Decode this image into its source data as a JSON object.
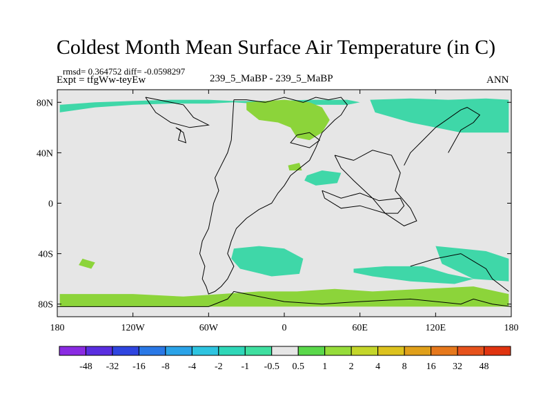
{
  "chart_data": {
    "type": "heatmap",
    "title": "Coldest Month Mean Surface Air Temperature (in C)",
    "subtitle_left_top": "rmsd= 0.364752 diff= -0.0598297",
    "subtitle_left": "Expt = tfgWw-teyEw",
    "subtitle_center": "239_5_MaBP - 239_5_MaBP",
    "subtitle_right": "ANN",
    "xlim": [
      -180,
      180
    ],
    "ylim": [
      -90,
      90
    ],
    "x_ticks": [
      {
        "value": -180,
        "label": "180"
      },
      {
        "value": -120,
        "label": "120W"
      },
      {
        "value": -60,
        "label": "60W"
      },
      {
        "value": 0,
        "label": "0"
      },
      {
        "value": 60,
        "label": "60E"
      },
      {
        "value": 120,
        "label": "120E"
      },
      {
        "value": 180,
        "label": "180"
      }
    ],
    "y_ticks": [
      {
        "value": 80,
        "label": "80N"
      },
      {
        "value": 40,
        "label": "40N"
      },
      {
        "value": 0,
        "label": "0"
      },
      {
        "value": -40,
        "label": "40S"
      },
      {
        "value": -80,
        "label": "80S"
      }
    ],
    "colorbar": {
      "labels": [
        "-48",
        "-32",
        "-16",
        "-8",
        "-4",
        "-2",
        "-1",
        "-0.5",
        "0.5",
        "1",
        "2",
        "4",
        "8",
        "16",
        "32",
        "48"
      ],
      "colors": [
        "#8a2be2",
        "#5a2ee0",
        "#2f45e0",
        "#2a78e6",
        "#2ba3e8",
        "#2ec4e0",
        "#2fd7b8",
        "#3fdfa0",
        "#e6e6e6",
        "#5ad84a",
        "#96dc3a",
        "#c4d62a",
        "#dcc21e",
        "#e0a01a",
        "#e6781c",
        "#e6521c",
        "#e03410"
      ]
    },
    "regions": [
      {
        "category": "-0.5 to -1",
        "lon": [
          -178,
          -150,
          -120,
          -90,
          -60,
          -40,
          -10,
          20,
          50,
          60,
          50,
          20,
          -10,
          -40,
          -60,
          -90,
          -120,
          -150,
          -178
        ],
        "lat": [
          78,
          80,
          81,
          82,
          82,
          81,
          81,
          82,
          82,
          80,
          78,
          78,
          78,
          80,
          79,
          79,
          78,
          76,
          72
        ]
      },
      {
        "category": "-0.5 to -1",
        "lon": [
          68,
          100,
          130,
          160,
          178,
          178,
          140,
          100,
          72
        ],
        "lat": [
          82,
          83,
          82,
          83,
          82,
          56,
          56,
          64,
          72
        ]
      },
      {
        "category": "0.5 to 1",
        "lon": [
          -30,
          0,
          20,
          30,
          36,
          30,
          20,
          10,
          5,
          -5,
          -20,
          -30
        ],
        "lat": [
          80,
          82,
          80,
          76,
          66,
          56,
          50,
          52,
          60,
          64,
          66,
          74
        ]
      },
      {
        "category": "0.5 to 1",
        "lon": [
          10,
          25,
          28,
          15
        ],
        "lat": [
          70,
          72,
          64,
          62
        ]
      },
      {
        "category": "-0.5 to -1",
        "lon": [
          18,
          30,
          45,
          42,
          25,
          16
        ],
        "lat": [
          22,
          26,
          24,
          16,
          14,
          18
        ]
      },
      {
        "category": "0.5 to 1",
        "lon": [
          3,
          12,
          14,
          4
        ],
        "lat": [
          30,
          32,
          26,
          26
        ]
      },
      {
        "category": "-0.5 to -1",
        "lon": [
          -40,
          -20,
          0,
          15,
          12,
          -10,
          -35,
          -42
        ],
        "lat": [
          -36,
          -34,
          -36,
          -44,
          -56,
          -58,
          -52,
          -44
        ]
      },
      {
        "category": "0.5 to 1",
        "lon": [
          -160,
          -150,
          -153,
          -163
        ],
        "lat": [
          -44,
          -47,
          -52,
          -49
        ]
      },
      {
        "category": "0.5 to 1",
        "lon": [
          -178,
          -120,
          -80,
          -50,
          -20,
          10,
          40,
          70,
          110,
          150,
          178,
          178,
          -178
        ],
        "lat": [
          -72,
          -72,
          -74,
          -72,
          -70,
          -70,
          -68,
          -70,
          -68,
          -66,
          -72,
          -82,
          -82
        ]
      },
      {
        "category": "-0.5 to -1",
        "lon": [
          55,
          80,
          110,
          130,
          150,
          135,
          100,
          70,
          55
        ],
        "lat": [
          -52,
          -50,
          -50,
          -56,
          -60,
          -64,
          -62,
          -58,
          -55
        ]
      },
      {
        "category": "-0.5 to -1",
        "lon": [
          120,
          140,
          160,
          178,
          178,
          150,
          125
        ],
        "lat": [
          -34,
          -36,
          -38,
          -44,
          -62,
          -60,
          -48
        ]
      }
    ],
    "coastlines": [
      {
        "lon": [
          -40,
          -30,
          -15,
          0,
          15,
          25,
          35,
          45,
          50,
          45,
          40,
          30,
          25,
          20,
          15,
          10,
          5,
          0,
          -5,
          -10,
          -20,
          -30,
          -38,
          -42,
          -45,
          -40,
          -45,
          -50,
          -55,
          -60,
          -62,
          -65,
          -63,
          -67,
          -65,
          -60,
          -58,
          -56,
          -52,
          -55,
          -50,
          -45,
          -42,
          -40
        ],
        "lat": [
          82,
          82,
          80,
          84,
          80,
          84,
          82,
          84,
          78,
          70,
          66,
          56,
          44,
          34,
          30,
          26,
          22,
          14,
          8,
          0,
          -5,
          -12,
          -20,
          -30,
          -40,
          -50,
          -60,
          -66,
          -70,
          -72,
          -66,
          -60,
          -50,
          -40,
          -30,
          -20,
          -10,
          0,
          10,
          20,
          30,
          40,
          50,
          82
        ]
      },
      {
        "lon": [
          -110,
          -100,
          -90,
          -80,
          -72,
          -60,
          -75,
          -90,
          -102,
          -110
        ],
        "lat": [
          84,
          82,
          80,
          78,
          68,
          62,
          60,
          64,
          72,
          84
        ]
      },
      {
        "lon": [
          -86,
          -82,
          -84,
          -78,
          -80,
          -86
        ],
        "lat": [
          60,
          58,
          50,
          48,
          56,
          60
        ]
      },
      {
        "lon": [
          10,
          20,
          28,
          20,
          5,
          10
        ],
        "lat": [
          54,
          56,
          50,
          44,
          48,
          54
        ]
      },
      {
        "lon": [
          40,
          55,
          70,
          85,
          92,
          88,
          100,
          105,
          95,
          80,
          70,
          55,
          45,
          40
        ],
        "lat": [
          38,
          34,
          42,
          38,
          24,
          10,
          -4,
          -14,
          -18,
          -8,
          4,
          18,
          28,
          38
        ]
      },
      {
        "lon": [
          30,
          45,
          60,
          75,
          92,
          95,
          90,
          80,
          60,
          45,
          32,
          30
        ],
        "lat": [
          10,
          4,
          8,
          2,
          4,
          -2,
          -8,
          -8,
          -2,
          -4,
          4,
          10
        ]
      },
      {
        "lon": [
          130,
          140,
          150,
          155,
          145,
          140,
          120,
          110,
          100,
          95
        ],
        "lat": [
          40,
          58,
          64,
          70,
          76,
          74,
          60,
          50,
          40,
          30
        ]
      },
      {
        "lon": [
          100,
          120,
          140,
          150,
          160,
          165,
          178
        ],
        "lat": [
          -50,
          -44,
          -40,
          -46,
          -52,
          -60,
          -70
        ]
      },
      {
        "lon": [
          -180,
          -120,
          -60,
          -45,
          -40,
          -30,
          0,
          30,
          60,
          100,
          140,
          150,
          165,
          180
        ],
        "lat": [
          -82,
          -82,
          -82,
          -76,
          -70,
          -72,
          -78,
          -80,
          -78,
          -76,
          -80,
          -76,
          -80,
          -82
        ]
      }
    ]
  }
}
